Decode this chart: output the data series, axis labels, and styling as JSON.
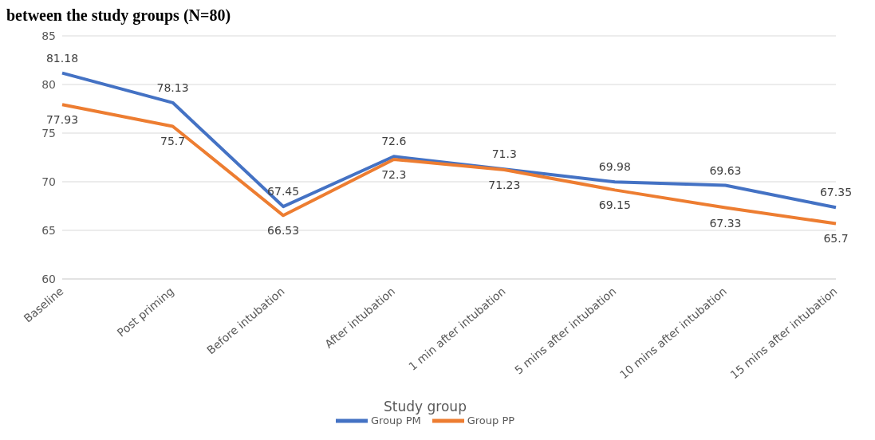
{
  "chart_data": {
    "type": "line",
    "title": "between the study groups (N=80)",
    "legend_title": "Study group",
    "categories": [
      "Baseline",
      "Post priming",
      "Before intubation",
      "After intubation",
      "1 min after intubation",
      "5 mins after intubation",
      "10 mins after intubation",
      "15 mins after intubation"
    ],
    "series": [
      {
        "name": "Group PM",
        "color": "#4472c4",
        "values": [
          81.18,
          78.13,
          67.45,
          72.6,
          71.3,
          69.98,
          69.63,
          67.35
        ]
      },
      {
        "name": "Group PP",
        "color": "#ed7d31",
        "values": [
          77.93,
          75.7,
          66.53,
          72.3,
          71.23,
          69.15,
          67.33,
          65.7
        ]
      }
    ],
    "ylim": [
      60,
      85
    ],
    "yticks": [
      60,
      65,
      70,
      75,
      80,
      85
    ],
    "grid": "y",
    "legend": "bottom",
    "data_labels": true,
    "marker": "none",
    "line_style": "solid"
  }
}
